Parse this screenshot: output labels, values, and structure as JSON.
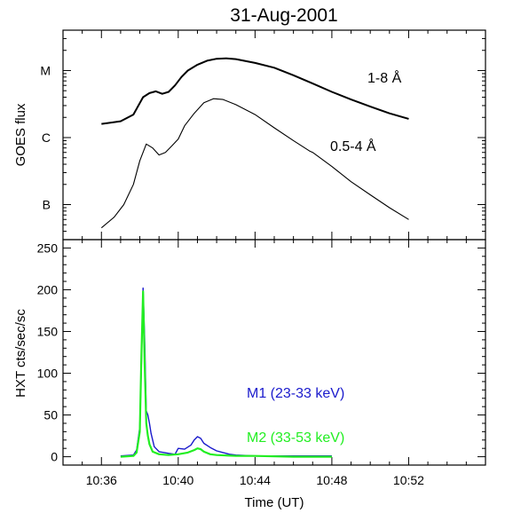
{
  "title": "31-Aug-2001",
  "chart_data": [
    {
      "type": "line",
      "name": "goes",
      "ylabel": "GOES flux",
      "yscale": "log",
      "xlim": [
        "10:34",
        "10:56"
      ],
      "ylim": [
        3e-08,
        4e-05
      ],
      "y_tick_labels": [
        "B",
        "C",
        "M"
      ],
      "y_tick_values": [
        1e-07,
        1e-06,
        1e-05
      ],
      "series": [
        {
          "name": "1-8 Å",
          "color": "#000000",
          "x": [
            "10:36:00",
            "10:37:00",
            "10:37:40",
            "10:38:10",
            "10:38:30",
            "10:38:50",
            "10:39:10",
            "10:39:30",
            "10:39:50",
            "10:40:10",
            "10:40:30",
            "10:41:00",
            "10:41:30",
            "10:42:00",
            "10:42:30",
            "10:43:00",
            "10:44:00",
            "10:45:00",
            "10:46:00",
            "10:47:00",
            "10:48:00",
            "10:49:00",
            "10:50:00",
            "10:51:00",
            "10:52:00"
          ],
          "y": [
            1.6e-06,
            1.75e-06,
            2.2e-06,
            4e-06,
            4.6e-06,
            4.9e-06,
            4.5e-06,
            4.8e-06,
            6e-06,
            8e-06,
            1e-05,
            1.22e-05,
            1.4e-05,
            1.5e-05,
            1.52e-05,
            1.48e-05,
            1.3e-05,
            1.1e-05,
            8.5e-06,
            6.4e-06,
            4.8e-06,
            3.7e-06,
            2.9e-06,
            2.3e-06,
            1.9e-06
          ]
        },
        {
          "name": "0.5-4 Å",
          "color": "#000000",
          "x": [
            "10:36:00",
            "10:36:40",
            "10:37:10",
            "10:37:40",
            "10:38:00",
            "10:38:20",
            "10:38:40",
            "10:39:00",
            "10:39:20",
            "10:39:40",
            "10:40:00",
            "10:40:20",
            "10:40:50",
            "10:41:20",
            "10:41:50",
            "10:42:20",
            "10:43:00",
            "10:44:00",
            "10:45:00",
            "10:46:00",
            "10:46:50",
            "10:47:00",
            "10:48:00",
            "10:49:00",
            "10:50:00",
            "10:51:00",
            "10:52:00"
          ],
          "y": [
            4.5e-08,
            6.5e-08,
            1e-07,
            2e-07,
            4.5e-07,
            8e-07,
            7e-07,
            5.5e-07,
            6e-07,
            7.5e-07,
            9.5e-07,
            1.5e-06,
            2.3e-06,
            3.3e-06,
            3.8e-06,
            3.7e-06,
            3.1e-06,
            2.2e-06,
            1.4e-06,
            9e-07,
            6.3e-07,
            6e-07,
            3.7e-07,
            2.2e-07,
            1.4e-07,
            9e-08,
            6e-08
          ]
        }
      ],
      "annotations": [
        "1-8 Å",
        "0.5-4 Å"
      ]
    },
    {
      "type": "line",
      "name": "hxt",
      "ylabel": "HXT  cts/sec/sc",
      "xlabel": "Time (UT)",
      "xlim": [
        "10:34",
        "10:56"
      ],
      "ylim": [
        -10,
        260
      ],
      "yticks": [
        0,
        50,
        100,
        150,
        200,
        250
      ],
      "xtick_labels": [
        "10:36",
        "10:40",
        "10:44",
        "10:48",
        "10:52"
      ],
      "series": [
        {
          "name": "M1 (23-33 keV)",
          "color": "#1a1acc",
          "x": [
            "10:37:00",
            "10:37:40",
            "10:37:50",
            "10:38:00",
            "10:38:05",
            "10:38:10",
            "10:38:15",
            "10:38:20",
            "10:38:25",
            "10:38:30",
            "10:38:35",
            "10:38:45",
            "10:39:00",
            "10:39:30",
            "10:39:50",
            "10:40:00",
            "10:40:20",
            "10:40:40",
            "10:40:50",
            "10:41:00",
            "10:41:10",
            "10:41:20",
            "10:41:40",
            "10:42:00",
            "10:42:20",
            "10:42:40",
            "10:43:00",
            "10:44:00",
            "10:46:00",
            "10:48:00"
          ],
          "y": [
            1,
            2,
            8,
            35,
            110,
            202,
            140,
            55,
            50,
            40,
            28,
            12,
            6,
            4,
            3,
            10,
            9,
            14,
            20,
            24,
            22,
            16,
            11,
            7,
            5,
            3,
            2,
            1,
            1,
            1
          ]
        },
        {
          "name": "M2 (33-53 keV)",
          "color": "#22ee22",
          "x": [
            "10:37:00",
            "10:37:40",
            "10:37:50",
            "10:38:00",
            "10:38:05",
            "10:38:10",
            "10:38:15",
            "10:38:20",
            "10:38:25",
            "10:38:30",
            "10:38:40",
            "10:39:00",
            "10:39:30",
            "10:40:00",
            "10:40:30",
            "10:40:50",
            "10:41:00",
            "10:41:10",
            "10:41:20",
            "10:41:40",
            "10:42:00",
            "10:43:00",
            "10:44:00",
            "10:46:00",
            "10:48:00"
          ],
          "y": [
            0,
            1,
            5,
            30,
            120,
            198,
            110,
            40,
            25,
            15,
            6,
            3,
            2,
            3,
            5,
            8,
            10,
            9,
            6,
            3,
            2,
            1,
            1,
            0,
            0
          ]
        }
      ],
      "legend": "lower-right"
    }
  ]
}
